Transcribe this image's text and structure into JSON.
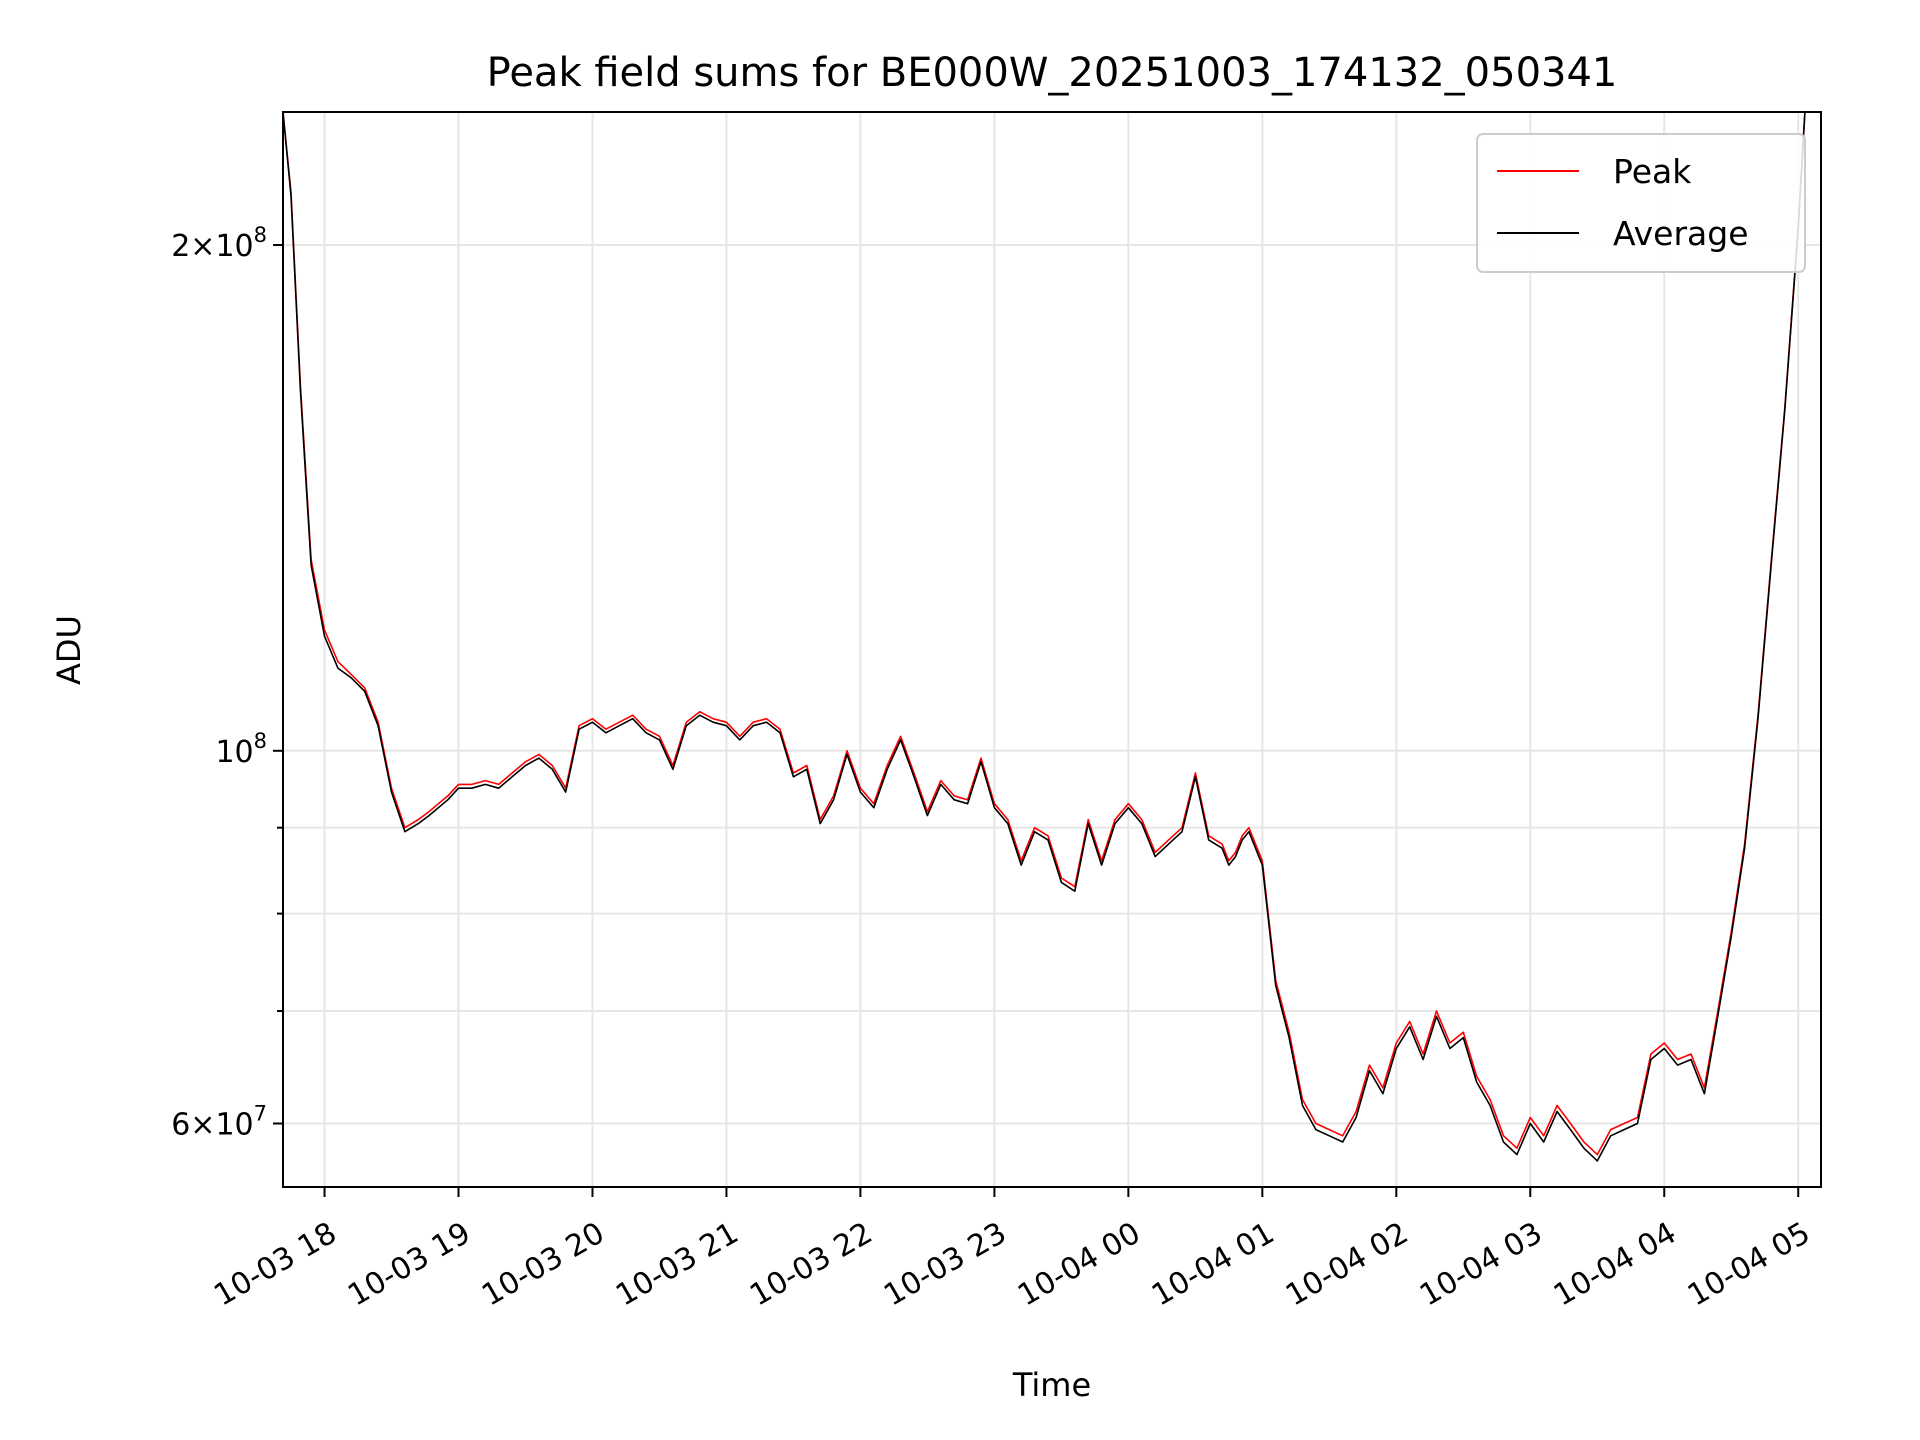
{
  "chart_data": {
    "type": "line",
    "title": "Peak field sums for BE000W_20251003_174132_050341",
    "xlabel": "Time",
    "ylabel": "ADU",
    "yscale": "log",
    "grid": true,
    "legend_position": "top-right",
    "xlim_hours": [
      17.69,
      29.17
    ],
    "ylim": [
      55000000,
      240000000
    ],
    "x_ticks": [
      {
        "value": 18,
        "label": "10-03 18"
      },
      {
        "value": 19,
        "label": "10-03 19"
      },
      {
        "value": 20,
        "label": "10-03 20"
      },
      {
        "value": 21,
        "label": "10-03 21"
      },
      {
        "value": 22,
        "label": "10-03 22"
      },
      {
        "value": 23,
        "label": "10-03 23"
      },
      {
        "value": 24,
        "label": "10-04 00"
      },
      {
        "value": 25,
        "label": "10-04 01"
      },
      {
        "value": 26,
        "label": "10-04 02"
      },
      {
        "value": 27,
        "label": "10-04 03"
      },
      {
        "value": 28,
        "label": "10-04 04"
      },
      {
        "value": 29,
        "label": "10-04 05"
      }
    ],
    "y_major_ticks": [
      {
        "value": 60000000,
        "base": "6",
        "exp": "7"
      },
      {
        "value": 100000000,
        "base": "",
        "exp": "8"
      },
      {
        "value": 200000000,
        "base": "2",
        "exp": "8"
      }
    ],
    "y_minor_ticks": [
      70000000,
      80000000,
      90000000
    ],
    "times_hours": [
      17.69,
      17.75,
      17.82,
      17.9,
      18.0,
      18.1,
      18.2,
      18.3,
      18.4,
      18.5,
      18.6,
      18.7,
      18.78,
      18.85,
      18.92,
      19.0,
      19.1,
      19.2,
      19.3,
      19.4,
      19.5,
      19.6,
      19.7,
      19.8,
      19.9,
      20.0,
      20.1,
      20.2,
      20.3,
      20.4,
      20.5,
      20.6,
      20.7,
      20.8,
      20.9,
      21.0,
      21.1,
      21.2,
      21.3,
      21.4,
      21.5,
      21.6,
      21.7,
      21.8,
      21.9,
      22.0,
      22.1,
      22.2,
      22.3,
      22.4,
      22.5,
      22.6,
      22.7,
      22.8,
      22.9,
      23.0,
      23.1,
      23.2,
      23.3,
      23.4,
      23.5,
      23.6,
      23.7,
      23.8,
      23.9,
      24.0,
      24.1,
      24.2,
      24.3,
      24.4,
      24.5,
      24.6,
      24.7,
      24.75,
      24.8,
      24.85,
      24.9,
      25.0,
      25.1,
      25.2,
      25.3,
      25.4,
      25.5,
      25.6,
      25.7,
      25.8,
      25.9,
      26.0,
      26.1,
      26.2,
      26.3,
      26.4,
      26.5,
      26.6,
      26.7,
      26.8,
      26.9,
      27.0,
      27.1,
      27.2,
      27.3,
      27.4,
      27.5,
      27.6,
      27.7,
      27.8,
      27.9,
      28.0,
      28.1,
      28.2,
      28.3,
      28.4,
      28.5,
      28.6,
      28.7,
      28.8,
      28.9,
      29.0,
      29.05,
      29.1,
      29.17
    ],
    "series": [
      {
        "name": "Peak",
        "color": "#ff0000",
        "values": [
          240000000,
          215000000,
          165000000,
          130000000,
          118000000,
          113000000,
          111000000,
          109000000,
          104000000,
          95000000,
          90000000,
          91000000,
          92000000,
          93000000,
          94000000,
          95500000,
          95500000,
          96000000,
          95500000,
          97000000,
          98500000,
          99500000,
          98000000,
          95000000,
          103500000,
          104500000,
          103000000,
          104000000,
          105000000,
          103000000,
          102000000,
          98000000,
          104000000,
          105500000,
          104500000,
          104000000,
          102000000,
          104000000,
          104500000,
          103000000,
          97000000,
          98000000,
          91000000,
          94000000,
          100000000,
          95000000,
          93000000,
          98000000,
          102000000,
          97000000,
          92000000,
          96000000,
          94000000,
          93500000,
          99000000,
          93000000,
          91000000,
          86000000,
          90000000,
          89000000,
          84000000,
          83000000,
          91000000,
          86000000,
          91000000,
          93000000,
          91000000,
          87000000,
          88500000,
          90000000,
          97000000,
          89000000,
          88000000,
          86000000,
          87000000,
          89000000,
          90000000,
          86000000,
          73000000,
          68000000,
          62000000,
          60000000,
          59500000,
          59000000,
          61000000,
          65000000,
          63000000,
          67000000,
          69000000,
          66000000,
          70000000,
          67000000,
          68000000,
          64000000,
          62000000,
          59000000,
          58000000,
          60500000,
          59000000,
          61500000,
          60000000,
          58500000,
          57500000,
          59500000,
          60000000,
          60500000,
          66000000,
          67000000,
          65500000,
          66000000,
          63000000,
          70000000,
          78000000,
          88000000,
          105000000,
          130000000,
          160000000,
          205000000,
          240000000
        ]
      },
      {
        "name": "Average",
        "color": "#000000",
        "values": [
          240000000,
          214000000,
          164000000,
          129000000,
          117000000,
          112000000,
          110500000,
          108500000,
          103500000,
          94500000,
          89500000,
          90500000,
          91500000,
          92500000,
          93500000,
          95000000,
          95000000,
          95500000,
          95000000,
          96500000,
          98000000,
          99000000,
          97500000,
          94500000,
          103000000,
          104000000,
          102500000,
          103500000,
          104500000,
          102500000,
          101500000,
          97500000,
          103500000,
          105000000,
          104000000,
          103500000,
          101500000,
          103500000,
          104000000,
          102500000,
          96500000,
          97500000,
          90500000,
          93500000,
          99500000,
          94500000,
          92500000,
          97500000,
          101500000,
          96500000,
          91500000,
          95500000,
          93500000,
          93000000,
          98500000,
          92500000,
          90500000,
          85500000,
          89500000,
          88500000,
          83500000,
          82500000,
          90500000,
          85500000,
          90500000,
          92500000,
          90500000,
          86500000,
          88000000,
          89500000,
          96500000,
          88500000,
          87500000,
          85500000,
          86500000,
          88500000,
          89500000,
          85500000,
          72500000,
          67500000,
          61500000,
          59500000,
          59000000,
          58500000,
          60500000,
          64500000,
          62500000,
          66500000,
          68500000,
          65500000,
          69500000,
          66500000,
          67500000,
          63500000,
          61500000,
          58500000,
          57500000,
          60000000,
          58500000,
          61000000,
          59500000,
          58000000,
          57000000,
          59000000,
          59500000,
          60000000,
          65500000,
          66500000,
          65000000,
          65500000,
          62500000,
          69500000,
          77500000,
          87500000,
          104500000,
          129500000,
          159500000,
          204500000,
          240000000
        ]
      }
    ]
  }
}
